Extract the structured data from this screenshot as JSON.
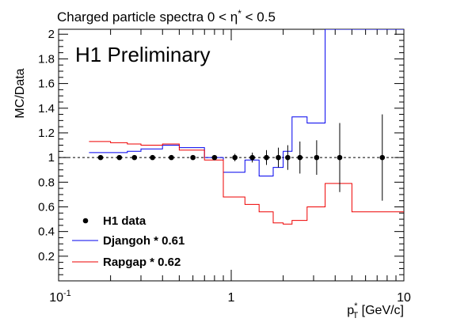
{
  "chart_data": {
    "type": "line",
    "title_parts": [
      "Charged particle spectra  0 < ",
      "η",
      "*",
      " < 0.5"
    ],
    "watermark": "H1 Preliminary",
    "ylabel": "MC/Data",
    "xlabel_parts": [
      "p",
      "*",
      "T",
      " [GeV/c]"
    ],
    "x_scale": "log",
    "xlim": [
      0.1,
      10
    ],
    "ylim": [
      0,
      2.04
    ],
    "y_ticks": [
      0.2,
      0.4,
      0.6,
      0.8,
      1,
      1.2,
      1.4,
      1.6,
      1.8,
      2
    ],
    "y_tick_labels": [
      "0.2",
      "0.4",
      "0.6",
      "0.8",
      "1",
      "1.2",
      "1.4",
      "1.6",
      "1.8",
      "2"
    ],
    "x_tick_labels": [
      {
        "x": 0.1,
        "base": "10",
        "exp": "-1"
      },
      {
        "x": 1,
        "base": "1",
        "exp": ""
      },
      {
        "x": 10,
        "base": "10",
        "exp": ""
      }
    ],
    "reference_line": 1,
    "bin_edges": [
      0.15,
      0.2,
      0.25,
      0.3,
      0.4,
      0.5,
      0.7,
      0.9,
      1.2,
      1.45,
      1.75,
      2.0,
      2.25,
      2.75,
      3.5,
      5.0,
      10.0
    ],
    "data": {
      "name": "H1 data",
      "x": [
        0.175,
        0.225,
        0.275,
        0.35,
        0.45,
        0.6,
        0.8,
        1.05,
        1.325,
        1.6,
        1.875,
        2.125,
        2.5,
        3.125,
        4.25,
        7.5
      ],
      "y": [
        1,
        1,
        1,
        1,
        1,
        1,
        1,
        1,
        1,
        1,
        1,
        1,
        1,
        1,
        1,
        1
      ],
      "err": [
        0.01,
        0.01,
        0.01,
        0.01,
        0.01,
        0.01,
        0.02,
        0.03,
        0.04,
        0.06,
        0.08,
        0.1,
        0.13,
        0.14,
        0.28,
        0.35
      ]
    },
    "series": [
      {
        "name": "Djangoh * 0.61",
        "color": "#0000ee",
        "values": [
          1.04,
          1.04,
          1.05,
          1.07,
          1.1,
          1.08,
          1.0,
          0.88,
          0.98,
          0.85,
          0.92,
          1.05,
          1.33,
          1.28,
          2.04,
          2.04
        ]
      },
      {
        "name": "Rapgap * 0.62",
        "color": "#ee0000",
        "values": [
          1.13,
          1.12,
          1.11,
          1.1,
          1.11,
          1.06,
          0.98,
          0.68,
          0.62,
          0.56,
          0.47,
          0.46,
          0.49,
          0.6,
          0.79,
          0.56
        ]
      }
    ],
    "legend": {
      "position": "bottom-left",
      "entries": [
        "H1 data",
        "Djangoh * 0.61",
        "Rapgap * 0.62"
      ]
    }
  }
}
